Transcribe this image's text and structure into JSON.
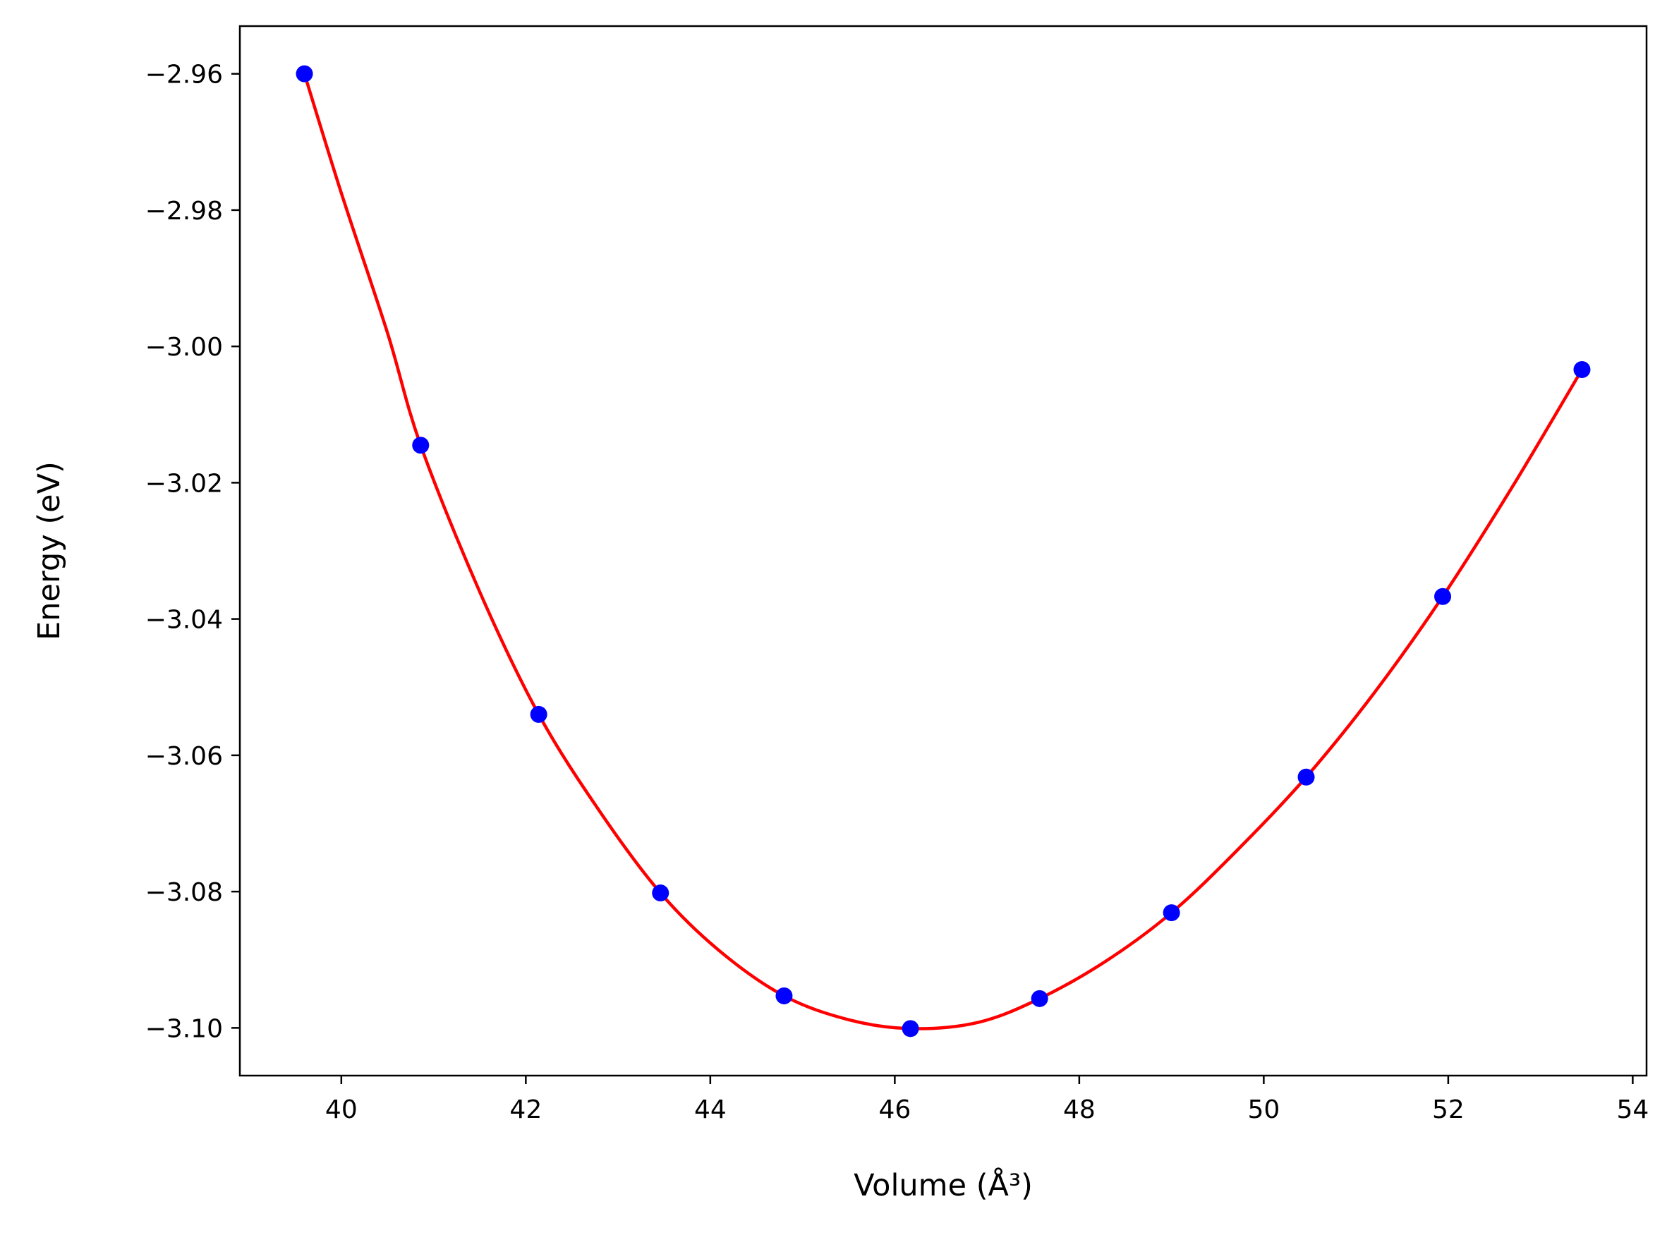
{
  "chart_data": {
    "type": "scatter",
    "xlabel": "Volume (Å³)",
    "ylabel": "Energy (eV)",
    "xlim": [
      38.9,
      54.15
    ],
    "ylim": [
      -3.107,
      -2.953
    ],
    "x_ticks": [
      40,
      42,
      44,
      46,
      48,
      50,
      52,
      54
    ],
    "x_tick_labels": [
      "40",
      "42",
      "44",
      "46",
      "48",
      "50",
      "52",
      "54"
    ],
    "y_ticks": [
      -2.96,
      -2.98,
      -3.0,
      -3.02,
      -3.04,
      -3.06,
      -3.08,
      -3.1
    ],
    "y_tick_labels": [
      "−2.96",
      "−2.98",
      "−3.00",
      "−3.02",
      "−3.04",
      "−3.06",
      "−3.08",
      "−3.10"
    ],
    "grid": false,
    "series": [
      {
        "kind": "points",
        "color": "#0000ff",
        "x": [
          39.6,
          40.86,
          42.14,
          43.46,
          44.8,
          46.17,
          47.57,
          49.0,
          50.46,
          51.94,
          53.45
        ],
        "y": [
          -2.96,
          -3.0145,
          -3.054,
          -3.0802,
          -3.0953,
          -3.1001,
          -3.0957,
          -3.0831,
          -3.0632,
          -3.0367,
          -3.0034
        ]
      },
      {
        "kind": "fit-curve",
        "color": "#ff0000",
        "x": [
          39.6,
          40.0,
          40.5,
          40.86,
          41.5,
          42.14,
          42.8,
          43.46,
          44.1,
          44.8,
          45.5,
          46.17,
          46.9,
          47.57,
          48.3,
          49.0,
          49.7,
          50.46,
          51.2,
          51.94,
          52.7,
          53.45
        ],
        "y": [
          -2.96,
          -2.9775,
          -2.998,
          -3.0145,
          -3.036,
          -3.054,
          -3.0682,
          -3.0802,
          -3.0887,
          -3.0953,
          -3.0988,
          -3.1001,
          -3.0992,
          -3.0957,
          -3.0901,
          -3.0831,
          -3.0741,
          -3.0632,
          -3.0508,
          -3.0367,
          -3.0205,
          -3.0034
        ]
      }
    ]
  }
}
